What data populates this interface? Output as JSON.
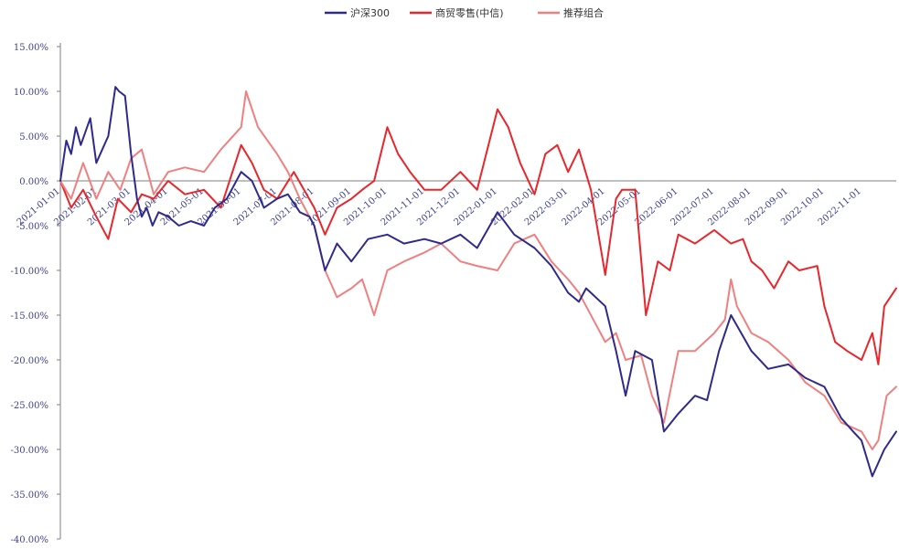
{
  "chart_data": {
    "type": "line",
    "title": "",
    "xlabel": "",
    "ylabel": "",
    "ylim": [
      -40,
      15
    ],
    "y_ticks": [
      "15.00%",
      "10.00%",
      "5.00%",
      "0.00%",
      "-5.00%",
      "-10.00%",
      "-15.00%",
      "-20.00%",
      "-25.00%",
      "-30.00%",
      "-35.00%",
      "-40.00%"
    ],
    "y_tick_values": [
      15,
      10,
      5,
      0,
      -5,
      -10,
      -15,
      -20,
      -25,
      -30,
      -35,
      -40
    ],
    "x_ticks": [
      "2021-01-01",
      "2021-02-01",
      "2021-03-01",
      "2021-04-01",
      "2021-05-01",
      "2021-06-01",
      "2021-07-01",
      "2021-08-01",
      "2021-09-01",
      "2021-10-01",
      "2021-11-01",
      "2021-12-01",
      "2022-01-01",
      "2022-02-01",
      "2022-03-01",
      "2022-04-01",
      "2022-05-01",
      "2022-06-01",
      "2022-07-01",
      "2022-08-01",
      "2022-09-01",
      "2022-10-01",
      "2022-11-01"
    ],
    "x_range": [
      "2021-01-01",
      "2022-11-30"
    ],
    "grid": false,
    "legend_position": "top-center",
    "series": [
      {
        "name": "沪深300",
        "color": "#2e2a8c",
        "x": [
          "2021-01-01",
          "2021-01-06",
          "2021-01-10",
          "2021-01-14",
          "2021-01-18",
          "2021-01-22",
          "2021-01-26",
          "2021-01-31",
          "2021-02-05",
          "2021-02-10",
          "2021-02-16",
          "2021-02-19",
          "2021-02-24",
          "2021-03-01",
          "2021-03-06",
          "2021-03-10",
          "2021-03-14",
          "2021-03-19",
          "2021-03-24",
          "2021-04-01",
          "2021-04-10",
          "2021-04-20",
          "2021-05-01",
          "2021-05-10",
          "2021-05-20",
          "2021-06-01",
          "2021-06-10",
          "2021-06-20",
          "2021-07-01",
          "2021-07-10",
          "2021-07-20",
          "2021-07-28",
          "2021-08-01",
          "2021-08-10",
          "2021-08-20",
          "2021-09-01",
          "2021-09-15",
          "2021-10-01",
          "2021-10-15",
          "2021-11-01",
          "2021-11-15",
          "2021-12-01",
          "2021-12-15",
          "2022-01-01",
          "2022-01-15",
          "2022-02-01",
          "2022-02-15",
          "2022-03-01",
          "2022-03-10",
          "2022-03-16",
          "2022-04-01",
          "2022-04-10",
          "2022-04-18",
          "2022-04-26",
          "2022-05-10",
          "2022-05-20",
          "2022-06-01",
          "2022-06-15",
          "2022-06-25",
          "2022-07-05",
          "2022-07-15",
          "2022-08-01",
          "2022-08-15",
          "2022-09-01",
          "2022-09-15",
          "2022-10-01",
          "2022-10-15",
          "2022-10-25",
          "2022-11-01",
          "2022-11-10",
          "2022-11-20",
          "2022-11-30"
        ],
        "values": [
          0.0,
          4.5,
          3.0,
          6.0,
          4.0,
          5.5,
          7.0,
          2.0,
          3.5,
          5.0,
          10.5,
          10.0,
          9.5,
          3.0,
          -2.0,
          -4.0,
          -3.0,
          -5.0,
          -3.5,
          -4.0,
          -5.0,
          -4.5,
          -5.0,
          -3.0,
          -2.0,
          1.0,
          0.0,
          -3.0,
          -2.0,
          -1.5,
          -3.5,
          -4.0,
          -5.0,
          -10.0,
          -7.0,
          -9.0,
          -6.5,
          -6.0,
          -7.0,
          -6.5,
          -7.0,
          -6.0,
          -7.5,
          -3.5,
          -6.0,
          -7.5,
          -9.5,
          -12.5,
          -13.5,
          -12.0,
          -14.0,
          -19.0,
          -24.0,
          -19.0,
          -20.0,
          -28.0,
          -26.0,
          -24.0,
          -24.5,
          -19.0,
          -15.0,
          -19.0,
          -21.0,
          -20.5,
          -22.0,
          -23.0,
          -26.5,
          -28.0,
          -29.0,
          -33.0,
          -30.0,
          -28.0
        ]
      },
      {
        "name": "商贸零售(中信)",
        "color": "#e8262b",
        "x": [
          "2021-01-01",
          "2021-01-10",
          "2021-01-20",
          "2021-01-31",
          "2021-02-10",
          "2021-02-18",
          "2021-03-01",
          "2021-03-10",
          "2021-03-20",
          "2021-04-01",
          "2021-04-15",
          "2021-05-01",
          "2021-05-15",
          "2021-06-01",
          "2021-06-10",
          "2021-06-20",
          "2021-07-01",
          "2021-07-15",
          "2021-08-01",
          "2021-08-10",
          "2021-08-20",
          "2021-09-01",
          "2021-09-10",
          "2021-09-20",
          "2021-10-01",
          "2021-10-10",
          "2021-10-20",
          "2021-11-01",
          "2021-11-15",
          "2021-12-01",
          "2021-12-15",
          "2022-01-01",
          "2022-01-10",
          "2022-01-20",
          "2022-02-01",
          "2022-02-10",
          "2022-02-20",
          "2022-03-01",
          "2022-03-10",
          "2022-03-20",
          "2022-04-01",
          "2022-04-10",
          "2022-04-15",
          "2022-04-26",
          "2022-05-05",
          "2022-05-15",
          "2022-05-25",
          "2022-06-01",
          "2022-06-15",
          "2022-07-01",
          "2022-07-15",
          "2022-07-25",
          "2022-08-01",
          "2022-08-10",
          "2022-08-20",
          "2022-09-01",
          "2022-09-10",
          "2022-09-25",
          "2022-10-01",
          "2022-10-10",
          "2022-10-20",
          "2022-11-01",
          "2022-11-10",
          "2022-11-15",
          "2022-11-20",
          "2022-11-30"
        ],
        "values": [
          0.0,
          -3.0,
          -1.0,
          -4.0,
          -6.5,
          -2.0,
          -3.5,
          -1.5,
          -2.0,
          0.0,
          -1.5,
          -1.0,
          -3.0,
          4.0,
          2.0,
          -1.0,
          -2.0,
          1.0,
          -3.0,
          -6.0,
          -3.0,
          -2.0,
          -1.0,
          0.0,
          6.0,
          3.0,
          1.0,
          -1.0,
          -1.0,
          1.0,
          -1.0,
          8.0,
          6.0,
          2.0,
          -1.5,
          3.0,
          4.0,
          1.0,
          3.5,
          -1.0,
          -10.5,
          -2.0,
          -1.0,
          -1.0,
          -15.0,
          -9.0,
          -10.0,
          -6.0,
          -7.0,
          -5.5,
          -7.0,
          -6.5,
          -9.0,
          -10.0,
          -12.0,
          -9.0,
          -10.0,
          -9.5,
          -14.0,
          -18.0,
          -19.0,
          -20.0,
          -17.0,
          -20.5,
          -14.0,
          -12.0
        ]
      },
      {
        "name": "推荐组合",
        "color": "#f08080",
        "x": [
          "2021-01-01",
          "2021-01-10",
          "2021-01-20",
          "2021-01-31",
          "2021-02-10",
          "2021-02-20",
          "2021-03-01",
          "2021-03-10",
          "2021-03-20",
          "2021-04-01",
          "2021-04-15",
          "2021-05-01",
          "2021-05-15",
          "2021-06-01",
          "2021-06-05",
          "2021-06-15",
          "2021-07-01",
          "2021-07-10",
          "2021-07-20",
          "2021-08-01",
          "2021-08-10",
          "2021-08-20",
          "2021-09-01",
          "2021-09-10",
          "2021-09-20",
          "2021-10-01",
          "2021-10-15",
          "2021-11-01",
          "2021-11-15",
          "2021-12-01",
          "2021-12-15",
          "2022-01-01",
          "2022-01-15",
          "2022-02-01",
          "2022-02-15",
          "2022-03-01",
          "2022-03-10",
          "2022-03-16",
          "2022-04-01",
          "2022-04-10",
          "2022-04-18",
          "2022-05-01",
          "2022-05-10",
          "2022-05-20",
          "2022-06-01",
          "2022-06-15",
          "2022-07-01",
          "2022-07-10",
          "2022-07-15",
          "2022-07-20",
          "2022-08-01",
          "2022-08-15",
          "2022-09-01",
          "2022-09-15",
          "2022-10-01",
          "2022-10-15",
          "2022-11-01",
          "2022-11-10",
          "2022-11-15",
          "2022-11-22",
          "2022-11-30"
        ],
        "values": [
          0.0,
          -2.0,
          2.0,
          -2.0,
          1.0,
          -1.0,
          2.5,
          3.5,
          -1.5,
          1.0,
          1.5,
          1.0,
          3.5,
          6.0,
          10.0,
          6.0,
          3.0,
          1.0,
          -2.0,
          -5.0,
          -10.0,
          -13.0,
          -12.0,
          -11.0,
          -15.0,
          -10.0,
          -9.0,
          -8.0,
          -7.0,
          -9.0,
          -9.5,
          -10.0,
          -7.0,
          -6.0,
          -9.0,
          -11.0,
          -12.5,
          -14.0,
          -18.0,
          -17.0,
          -20.0,
          -19.5,
          -24.0,
          -27.0,
          -19.0,
          -19.0,
          -17.0,
          -15.5,
          -11.0,
          -14.0,
          -17.0,
          -18.0,
          -20.0,
          -22.5,
          -24.0,
          -27.0,
          -28.0,
          -30.0,
          -29.0,
          -24.0,
          -23.0
        ]
      }
    ]
  }
}
